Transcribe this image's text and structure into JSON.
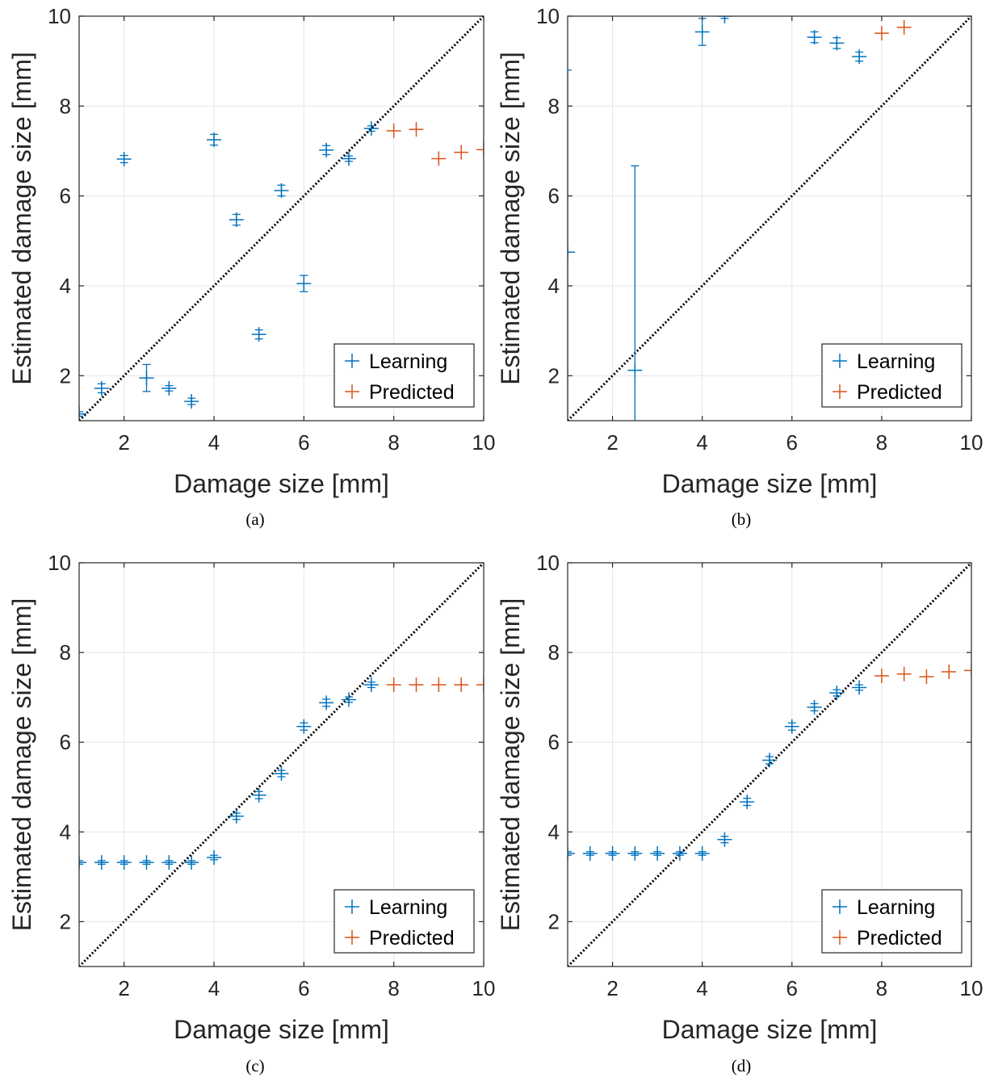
{
  "figure": {
    "colors": {
      "learning": "#0072BD",
      "predicted": "#D95319",
      "diagonal": "#000000",
      "grid": "#e6e6e6",
      "axis": "#262626"
    }
  },
  "chart_data": [
    {
      "type": "scatter",
      "caption": "(a)",
      "xlabel": "Damage size [mm]",
      "ylabel": "Estimated damage size [mm]",
      "xlim": [
        1,
        10
      ],
      "ylim": [
        1,
        10
      ],
      "xticks": [
        2,
        4,
        6,
        8,
        10
      ],
      "yticks": [
        2,
        4,
        6,
        8,
        10
      ],
      "grid": true,
      "legend_placement": "bottom-right",
      "reference_line": "y = x (dotted)",
      "series": [
        {
          "name": "Learning",
          "color": "#0072BD",
          "x": [
            1,
            1.5,
            2,
            2.5,
            3,
            3.5,
            4,
            4.5,
            5,
            5.5,
            6,
            6.5,
            7,
            7.5
          ],
          "y": [
            1.15,
            1.72,
            6.82,
            1.95,
            1.72,
            1.43,
            7.25,
            5.47,
            2.92,
            6.12,
            4.05,
            7.02,
            6.83,
            7.5
          ],
          "err": [
            0.05,
            0.1,
            0.08,
            0.3,
            0.06,
            0.07,
            0.12,
            0.12,
            0.1,
            0.12,
            0.18,
            0.1,
            0.06,
            0.06
          ]
        },
        {
          "name": "Predicted",
          "color": "#D95319",
          "x": [
            8,
            8.5,
            9,
            9.5,
            10
          ],
          "y": [
            7.45,
            7.48,
            6.83,
            6.97,
            7.03
          ],
          "err": [
            0,
            0,
            0,
            0,
            0
          ]
        }
      ]
    },
    {
      "type": "scatter",
      "caption": "(b)",
      "xlabel": "Damage size [mm]",
      "ylabel": "Estimated damage size [mm]",
      "xlim": [
        1,
        10
      ],
      "ylim": [
        1,
        10
      ],
      "xticks": [
        2,
        4,
        6,
        8,
        10
      ],
      "yticks": [
        2,
        4,
        6,
        8,
        10
      ],
      "grid": true,
      "legend_placement": "bottom-right",
      "reference_line": "y = x (dotted)",
      "series": [
        {
          "name": "Learning",
          "color": "#0072BD",
          "x": [
            1,
            2.5,
            4,
            4.5,
            6.5,
            7,
            7.5
          ],
          "y": [
            4.75,
            2.12,
            9.65,
            10,
            9.53,
            9.4,
            9.1
          ],
          "err": [
            4.05,
            4.55,
            0.3,
            0.05,
            0.12,
            0.12,
            0.1
          ]
        },
        {
          "name": "Predicted",
          "color": "#D95319",
          "x": [
            8,
            8.5
          ],
          "y": [
            9.62,
            9.75
          ],
          "err": [
            0,
            0
          ]
        }
      ]
    },
    {
      "type": "scatter",
      "caption": "(c)",
      "xlabel": "Damage size [mm]",
      "ylabel": "Estimated damage size [mm]",
      "xlim": [
        1,
        10
      ],
      "ylim": [
        1,
        10
      ],
      "xticks": [
        2,
        4,
        6,
        8,
        10
      ],
      "yticks": [
        2,
        4,
        6,
        8,
        10
      ],
      "grid": true,
      "legend_placement": "bottom-right",
      "reference_line": "y = x (dotted)",
      "series": [
        {
          "name": "Learning",
          "color": "#0072BD",
          "x": [
            1,
            1.5,
            2,
            2.5,
            3,
            3.5,
            4,
            4.5,
            5,
            5.5,
            6,
            6.5,
            7,
            7.5
          ],
          "y": [
            3.32,
            3.32,
            3.32,
            3.32,
            3.32,
            3.32,
            3.43,
            4.35,
            4.82,
            5.3,
            6.35,
            6.88,
            6.95,
            7.28
          ],
          "err": [
            0.04,
            0.04,
            0.04,
            0.04,
            0.04,
            0.04,
            0.05,
            0.07,
            0.08,
            0.07,
            0.08,
            0.08,
            0.06,
            0.06
          ]
        },
        {
          "name": "Predicted",
          "color": "#D95319",
          "x": [
            8,
            8.5,
            9,
            9.5,
            10
          ],
          "y": [
            7.28,
            7.28,
            7.28,
            7.28,
            7.28
          ],
          "err": [
            0,
            0,
            0,
            0,
            0
          ]
        }
      ]
    },
    {
      "type": "scatter",
      "caption": "(d)",
      "xlabel": "Damage size [mm]",
      "ylabel": "Estimated damage size [mm]",
      "xlim": [
        1,
        10
      ],
      "ylim": [
        1,
        10
      ],
      "xticks": [
        2,
        4,
        6,
        8,
        10
      ],
      "yticks": [
        2,
        4,
        6,
        8,
        10
      ],
      "grid": true,
      "legend_placement": "bottom-right",
      "reference_line": "y = x (dotted)",
      "series": [
        {
          "name": "Learning",
          "color": "#0072BD",
          "x": [
            1,
            1.5,
            2,
            2.5,
            3,
            3.5,
            4,
            4.5,
            5,
            5.5,
            6,
            6.5,
            7,
            7.5
          ],
          "y": [
            3.52,
            3.52,
            3.52,
            3.52,
            3.52,
            3.52,
            3.52,
            3.83,
            4.67,
            5.6,
            6.35,
            6.78,
            7.1,
            7.22
          ],
          "err": [
            0.04,
            0.04,
            0.04,
            0.04,
            0.04,
            0.04,
            0.04,
            0.07,
            0.08,
            0.08,
            0.08,
            0.08,
            0.07,
            0.06
          ]
        },
        {
          "name": "Predicted",
          "color": "#D95319",
          "x": [
            8,
            8.5,
            9,
            9.5,
            10
          ],
          "y": [
            7.48,
            7.52,
            7.46,
            7.57,
            7.6
          ],
          "err": [
            0,
            0,
            0,
            0,
            0
          ]
        }
      ]
    }
  ]
}
